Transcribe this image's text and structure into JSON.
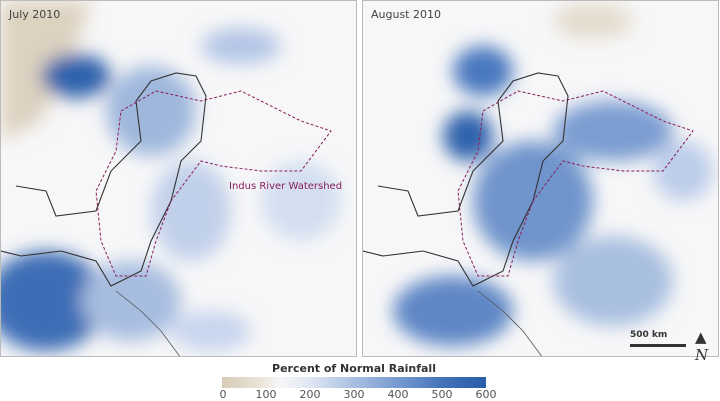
{
  "panels": [
    {
      "title": "July 2010",
      "annotation": "Indus River Watershed"
    },
    {
      "title": "August 2010"
    }
  ],
  "legend": {
    "title": "Percent of Normal Rainfall",
    "ticks": [
      "0",
      "100",
      "200",
      "300",
      "400",
      "500",
      "600"
    ],
    "colors": [
      "#d8ccb8",
      "#f6f6f8",
      "#a9bfe0",
      "#3f6fb8",
      "#2a5ea8"
    ]
  },
  "scale": {
    "label": "500 km"
  },
  "north_symbol": "N"
}
